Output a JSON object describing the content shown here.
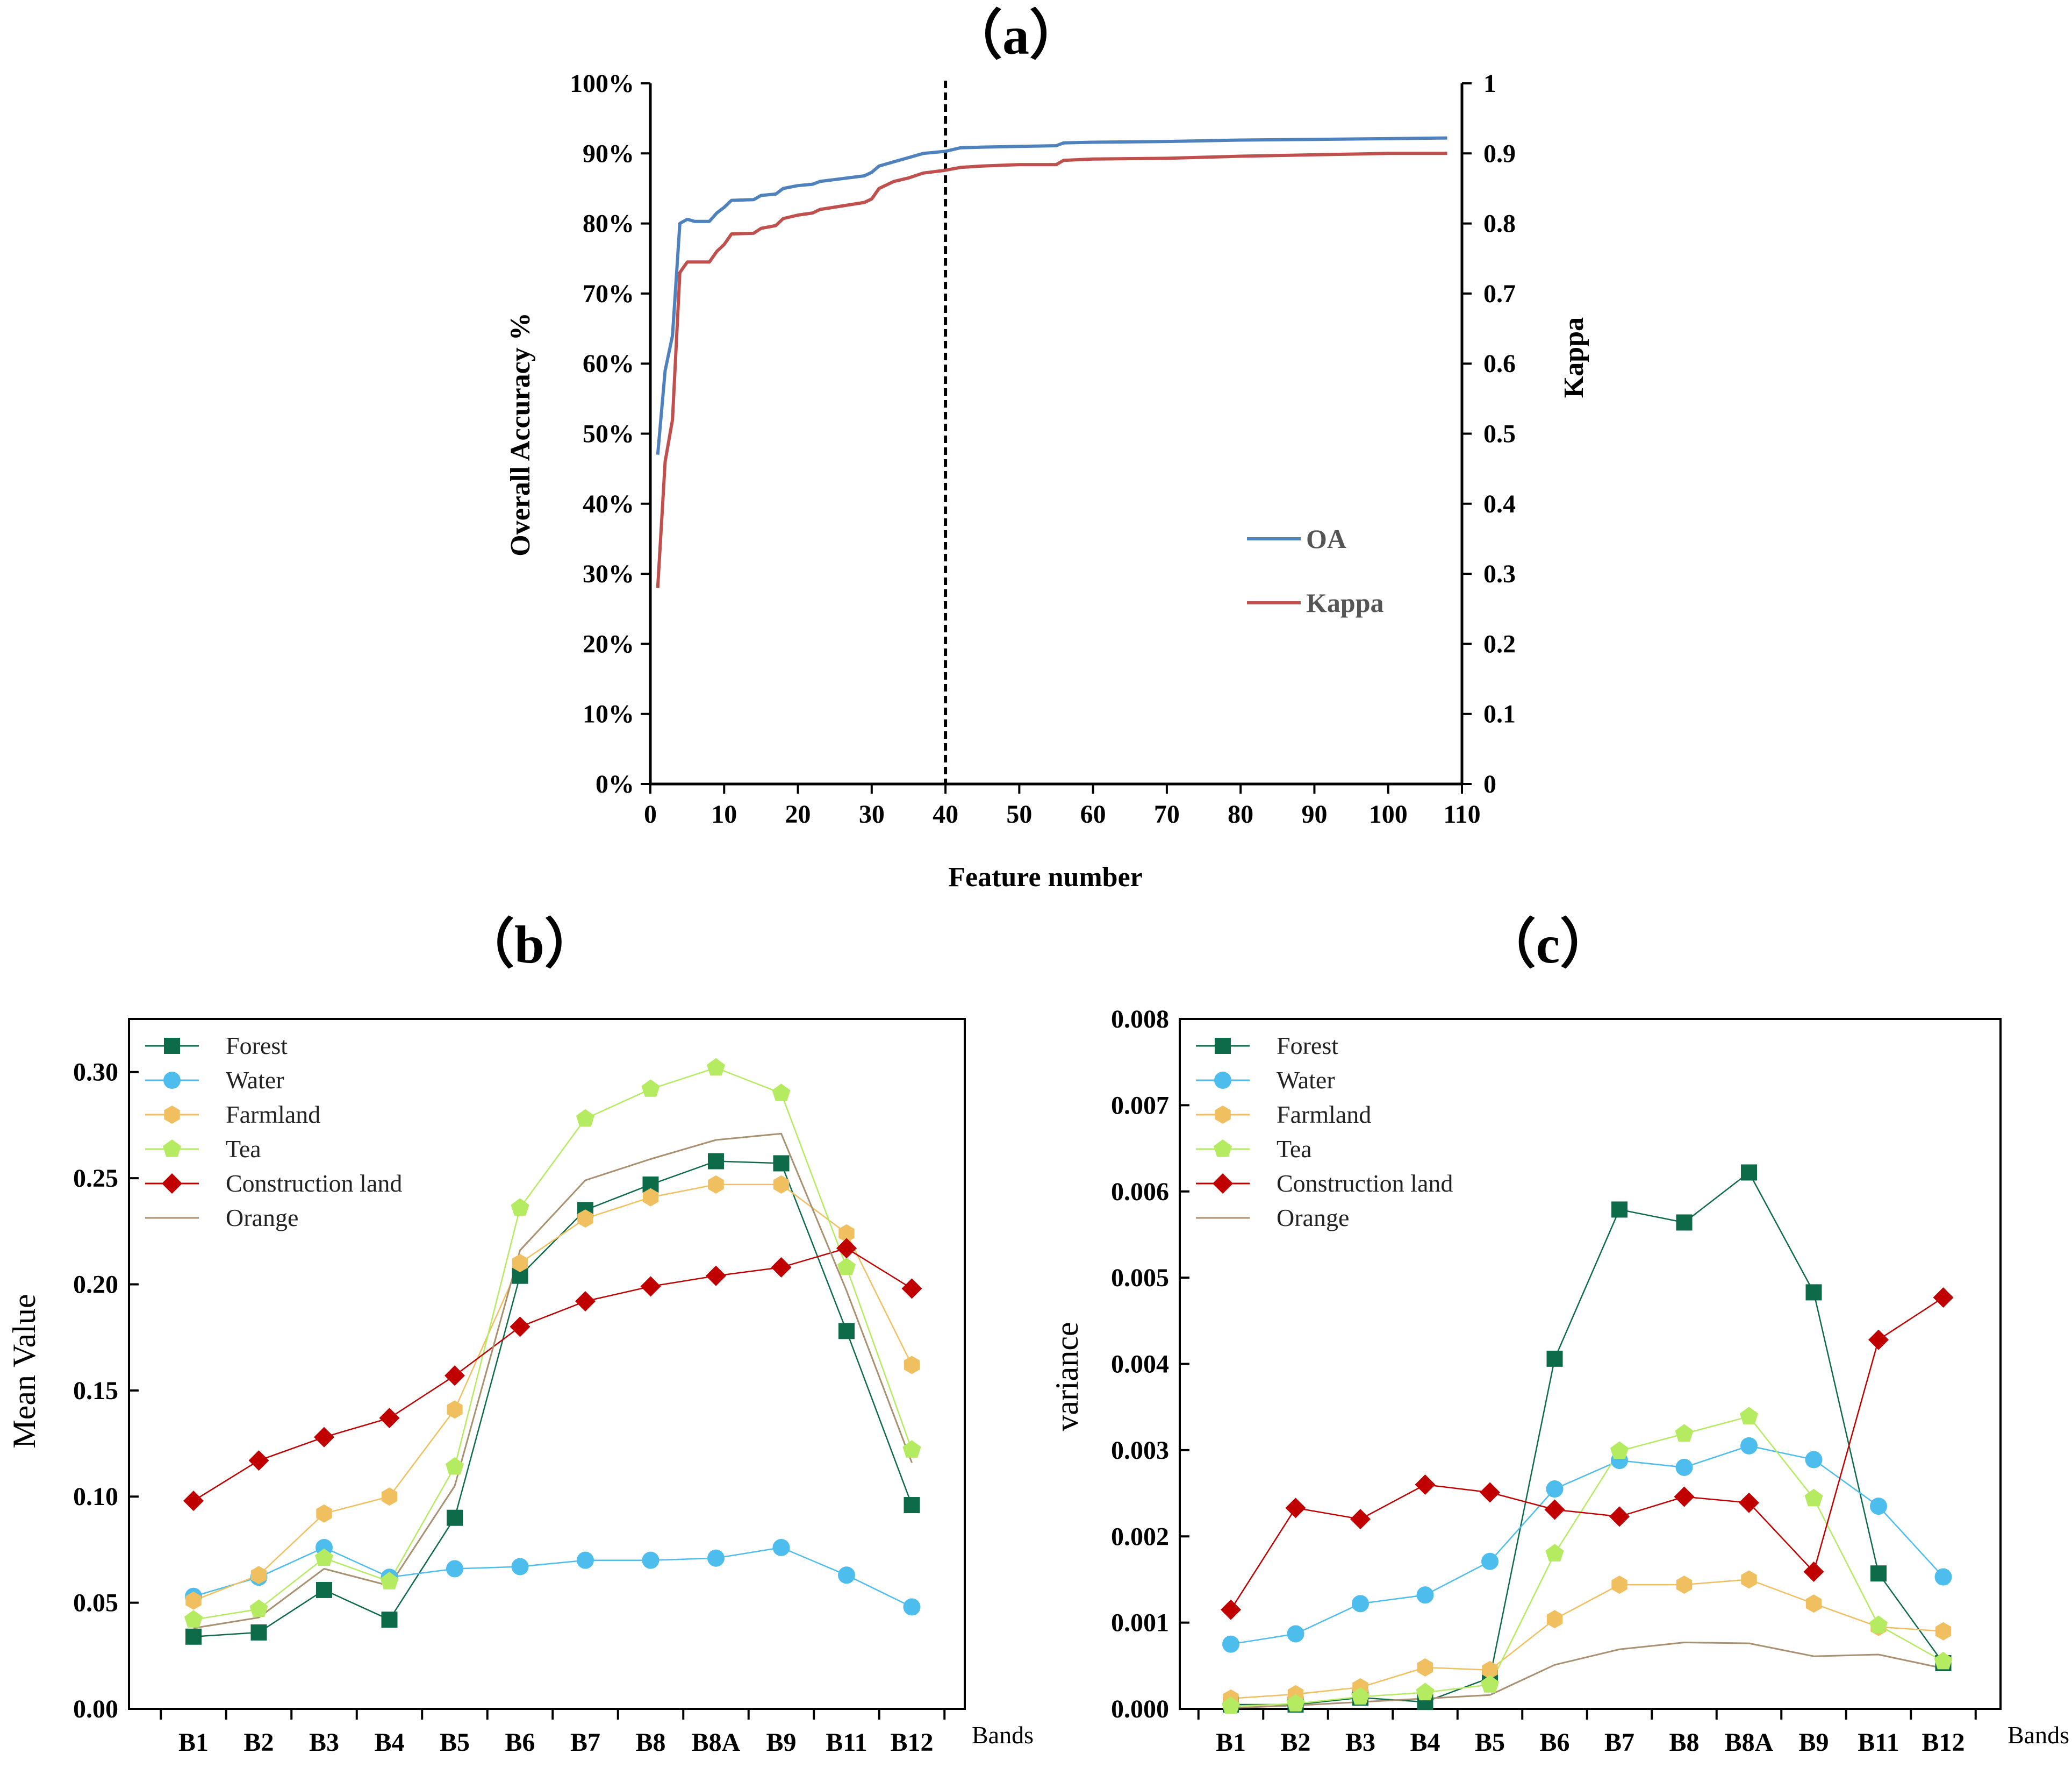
{
  "chart_data": [
    {
      "panel_label": "（a）",
      "type": "line",
      "xlabel": "Feature number",
      "ylabel": "Overall Accuracy %",
      "y2label": "Kappa",
      "xlim": [
        0,
        110
      ],
      "ylim": [
        0,
        100
      ],
      "y2lim": [
        0,
        1
      ],
      "xticks": [
        "0",
        "10",
        "20",
        "30",
        "40",
        "50",
        "60",
        "70",
        "80",
        "90",
        "100",
        "110"
      ],
      "yticks": [
        "0%",
        "10%",
        "20%",
        "30%",
        "40%",
        "50%",
        "60%",
        "70%",
        "80%",
        "90%",
        "100%"
      ],
      "y2ticks": [
        "0",
        "0.1",
        "0.2",
        "0.3",
        "0.4",
        "0.5",
        "0.6",
        "0.7",
        "0.8",
        "0.9",
        "1"
      ],
      "vline_x": 40,
      "legend_position": "lower-right",
      "colors": {
        "OA": "#4f81bd",
        "Kappa": "#c0504d"
      },
      "series": [
        {
          "name": "OA",
          "axis": "left",
          "points": [
            [
              1,
              47
            ],
            [
              2,
              59
            ],
            [
              3,
              64
            ],
            [
              4,
              80
            ],
            [
              5,
              80.6
            ],
            [
              6,
              80.3
            ],
            [
              8,
              80.3
            ],
            [
              9,
              81.5
            ],
            [
              10,
              82.3
            ],
            [
              11,
              83.3
            ],
            [
              14,
              83.4
            ],
            [
              15,
              84
            ],
            [
              17,
              84.2
            ],
            [
              18,
              85
            ],
            [
              20,
              85.4
            ],
            [
              22,
              85.6
            ],
            [
              23,
              86
            ],
            [
              26,
              86.4
            ],
            [
              29,
              86.8
            ],
            [
              30,
              87.3
            ],
            [
              31,
              88.2
            ],
            [
              33,
              88.8
            ],
            [
              35,
              89.4
            ],
            [
              37,
              90
            ],
            [
              40,
              90.3
            ],
            [
              42,
              90.8
            ],
            [
              45,
              90.9
            ],
            [
              50,
              91
            ],
            [
              55,
              91.1
            ],
            [
              56,
              91.5
            ],
            [
              60,
              91.6
            ],
            [
              70,
              91.7
            ],
            [
              80,
              91.9
            ],
            [
              90,
              92
            ],
            [
              100,
              92.1
            ],
            [
              108,
              92.2
            ]
          ]
        },
        {
          "name": "Kappa",
          "axis": "right",
          "points": [
            [
              1,
              0.28
            ],
            [
              2,
              0.46
            ],
            [
              3,
              0.52
            ],
            [
              4,
              0.73
            ],
            [
              5,
              0.745
            ],
            [
              6,
              0.745
            ],
            [
              8,
              0.745
            ],
            [
              9,
              0.76
            ],
            [
              10,
              0.77
            ],
            [
              11,
              0.785
            ],
            [
              14,
              0.786
            ],
            [
              15,
              0.793
            ],
            [
              17,
              0.797
            ],
            [
              18,
              0.807
            ],
            [
              20,
              0.812
            ],
            [
              22,
              0.815
            ],
            [
              23,
              0.82
            ],
            [
              26,
              0.825
            ],
            [
              29,
              0.83
            ],
            [
              30,
              0.835
            ],
            [
              31,
              0.85
            ],
            [
              33,
              0.86
            ],
            [
              35,
              0.865
            ],
            [
              37,
              0.872
            ],
            [
              40,
              0.876
            ],
            [
              42,
              0.88
            ],
            [
              45,
              0.882
            ],
            [
              50,
              0.884
            ],
            [
              55,
              0.884
            ],
            [
              56,
              0.89
            ],
            [
              60,
              0.892
            ],
            [
              70,
              0.893
            ],
            [
              80,
              0.896
            ],
            [
              90,
              0.898
            ],
            [
              100,
              0.9
            ],
            [
              108,
              0.9
            ]
          ]
        }
      ]
    },
    {
      "panel_label": "（b）",
      "type": "line",
      "xlabel": "Bands",
      "ylabel": "Mean Value",
      "categories": [
        "B1",
        "B2",
        "B3",
        "B4",
        "B5",
        "B6",
        "B7",
        "B8",
        "B8A",
        "B9",
        "B11",
        "B12"
      ],
      "ylim": [
        0,
        0.325
      ],
      "yticks": [
        "0.00",
        "0.05",
        "0.10",
        "0.15",
        "0.20",
        "0.25",
        "0.30"
      ],
      "legend_position": "top-left",
      "series": [
        {
          "name": "Forest",
          "color": "#0e6b4a",
          "marker": "square",
          "values": [
            0.034,
            0.036,
            0.056,
            0.042,
            0.09,
            0.204,
            0.235,
            0.247,
            0.258,
            0.257,
            0.178,
            0.096
          ]
        },
        {
          "name": "Water",
          "color": "#4dbdee",
          "marker": "circle",
          "values": [
            0.053,
            0.062,
            0.076,
            0.062,
            0.066,
            0.067,
            0.07,
            0.07,
            0.071,
            0.076,
            0.063,
            0.048
          ]
        },
        {
          "name": "Farmland",
          "color": "#f0c060",
          "marker": "hexagon",
          "values": [
            0.051,
            0.063,
            0.092,
            0.1,
            0.141,
            0.21,
            0.231,
            0.241,
            0.247,
            0.247,
            0.224,
            0.162
          ]
        },
        {
          "name": "Tea",
          "color": "#b5eb60",
          "marker": "pentagon",
          "values": [
            0.042,
            0.047,
            0.071,
            0.06,
            0.114,
            0.236,
            0.278,
            0.292,
            0.302,
            0.29,
            0.208,
            0.122
          ]
        },
        {
          "name": "Construction land",
          "color": "#c00000",
          "marker": "diamond",
          "values": [
            0.098,
            0.117,
            0.128,
            0.137,
            0.157,
            0.18,
            0.192,
            0.199,
            0.204,
            0.208,
            0.217,
            0.198
          ]
        },
        {
          "name": "Orange",
          "color": "#a89070",
          "marker": "none",
          "values": [
            0.038,
            0.043,
            0.066,
            0.058,
            0.105,
            0.216,
            0.249,
            0.259,
            0.268,
            0.271,
            0.197,
            0.116
          ]
        }
      ]
    },
    {
      "panel_label": "（c）",
      "type": "line",
      "xlabel": "Bands",
      "ylabel": "variance",
      "categories": [
        "B1",
        "B2",
        "B3",
        "B4",
        "B5",
        "B6",
        "B7",
        "B8",
        "B8A",
        "B9",
        "B11",
        "B12"
      ],
      "ylim": [
        0,
        0.008
      ],
      "yticks": [
        "0.000",
        "0.001",
        "0.002",
        "0.003",
        "0.004",
        "0.005",
        "0.006",
        "0.007",
        "0.008"
      ],
      "legend_position": "top-left",
      "series": [
        {
          "name": "Forest",
          "color": "#0e6b4a",
          "marker": "square",
          "values": [
            5e-05,
            5e-05,
            0.00013,
            8e-05,
            0.00036,
            0.00406,
            0.00579,
            0.00564,
            0.00622,
            0.00483,
            0.00157,
            0.00053
          ]
        },
        {
          "name": "Water",
          "color": "#4dbdee",
          "marker": "circle",
          "values": [
            0.00075,
            0.00087,
            0.00122,
            0.00132,
            0.00171,
            0.00255,
            0.00288,
            0.0028,
            0.00305,
            0.00289,
            0.00235,
            0.00153
          ]
        },
        {
          "name": "Farmland",
          "color": "#f0c060",
          "marker": "hexagon",
          "values": [
            0.00012,
            0.00017,
            0.00025,
            0.00048,
            0.00045,
            0.00104,
            0.00144,
            0.00144,
            0.0015,
            0.00122,
            0.00095,
            0.0009
          ]
        },
        {
          "name": "Tea",
          "color": "#b5eb60",
          "marker": "pentagon",
          "values": [
            3e-05,
            6e-05,
            0.00014,
            0.00019,
            0.00028,
            0.0018,
            0.00299,
            0.00319,
            0.00339,
            0.00244,
            0.00097,
            0.00055
          ]
        },
        {
          "name": "Construction land",
          "color": "#c00000",
          "marker": "diamond",
          "values": [
            0.00115,
            0.00233,
            0.0022,
            0.0026,
            0.00251,
            0.00231,
            0.00223,
            0.00246,
            0.00239,
            0.00159,
            0.00428,
            0.00477
          ]
        },
        {
          "name": "Orange",
          "color": "#a89070",
          "marker": "none",
          "values": [
            1e-05,
            4e-05,
            8e-05,
            0.00012,
            0.00016,
            0.00051,
            0.00069,
            0.00077,
            0.00076,
            0.00061,
            0.00063,
            0.00047
          ]
        }
      ]
    }
  ]
}
